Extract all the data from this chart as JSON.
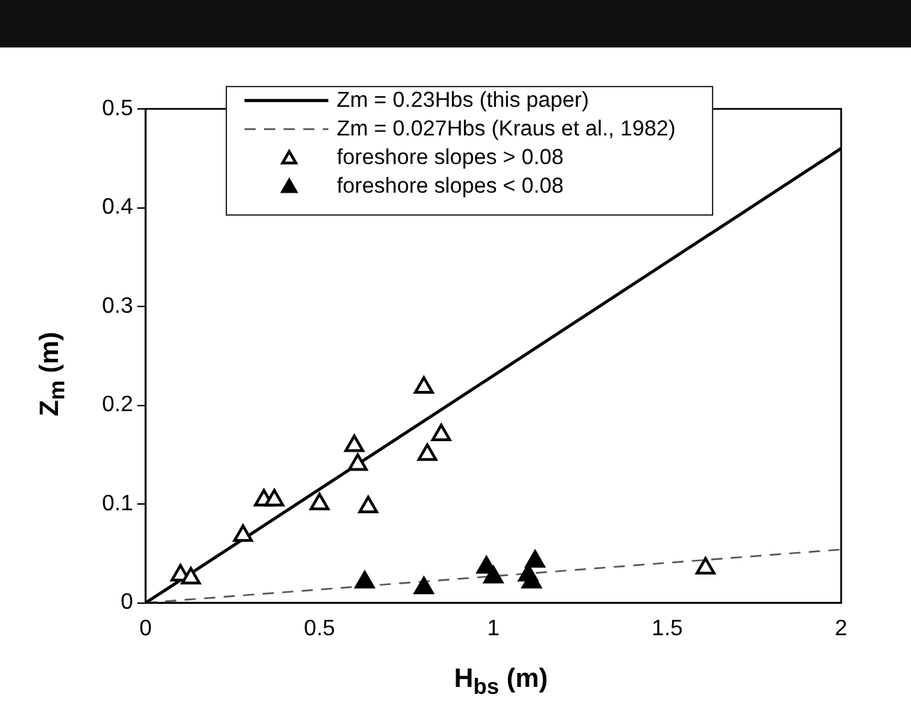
{
  "chart_data": {
    "type": "scatter",
    "xlabel": "H$_{bs}$ (m)",
    "ylabel": "Z$_{m}$ (m)",
    "xlim": [
      0,
      2
    ],
    "xticks": [
      0,
      0.5,
      1,
      1.5,
      2
    ],
    "ylim": [
      0,
      0.5
    ],
    "yticks": [
      0,
      0.1,
      0.2,
      0.3,
      0.4,
      0.5
    ],
    "grid": false,
    "legend": "top",
    "marker": "triangle",
    "series": [
      {
        "name": "Zm = 0.23Hbs (this paper)",
        "type": "line",
        "x": [
          0,
          2
        ],
        "values": [
          0,
          0.46
        ],
        "color": "#000000",
        "line_style": "solid",
        "marker": "none"
      },
      {
        "name": "Zm = 0.027Hbs (Kraus et al., 1982)",
        "type": "line",
        "x": [
          0,
          2
        ],
        "values": [
          0,
          0.054
        ],
        "color": "#555555",
        "line_style": "dashed",
        "marker": "none"
      },
      {
        "name": "foreshore slopes > 0.08",
        "color": "#ffffff",
        "x": [
          0.1,
          0.13,
          0.28,
          0.34,
          0.37,
          0.5,
          0.6,
          0.61,
          0.64,
          0.8,
          0.81,
          0.85,
          1.61
        ],
        "values": [
          0.028,
          0.025,
          0.068,
          0.104,
          0.104,
          0.1,
          0.159,
          0.14,
          0.097,
          0.218,
          0.15,
          0.17,
          0.035
        ]
      },
      {
        "name": "foreshore slopes < 0.08",
        "color": "#000000",
        "x": [
          0.63,
          0.8,
          0.98,
          1.0,
          1.1,
          1.11,
          1.12
        ],
        "values": [
          0.021,
          0.015,
          0.036,
          0.026,
          0.028,
          0.021,
          0.042
        ]
      }
    ]
  }
}
